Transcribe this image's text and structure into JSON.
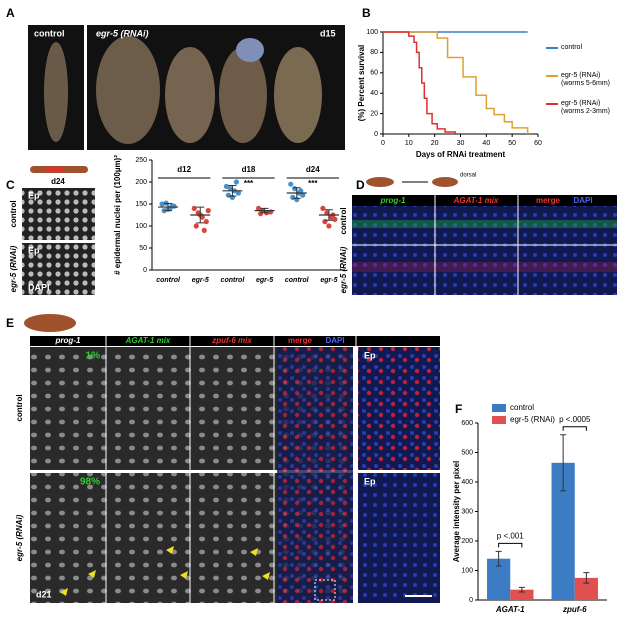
{
  "figure": {
    "panel_labels": [
      "A",
      "B",
      "C",
      "D",
      "E",
      "F"
    ],
    "panel_a": {
      "labels": [
        "control",
        "egr-5 (RNAi)",
        "d15"
      ]
    },
    "panel_c": {
      "header": "d24",
      "row_labels": [
        "control",
        "egr-5 (RNAi)"
      ],
      "tags": [
        "Ep",
        "Ep",
        "DAPI"
      ]
    },
    "panel_d": {
      "schematic": "dorsal",
      "columns": [
        "prog-1",
        "AGAT-1 mix",
        "merge",
        "DAPI"
      ],
      "rows": [
        "control",
        "egr-5 (RNAi)"
      ]
    },
    "panel_e": {
      "columns": [
        "prog-1",
        "AGAT-1 mix",
        "zpuf-6 mix",
        "merge",
        "DAPI"
      ],
      "rows": [
        "control",
        "egr-5 (RNAi)"
      ],
      "percent": [
        "1%",
        "98%"
      ],
      "tags": [
        "Ep",
        "Ep"
      ],
      "day": "d21"
    }
  },
  "chart_data": [
    {
      "type": "step",
      "ylabel": "(%) Percent survival",
      "xlabel": "Days of RNAi treatment",
      "xlim": [
        0,
        60
      ],
      "ylim": [
        0,
        100
      ],
      "xticks": [
        0,
        10,
        20,
        30,
        40,
        50,
        60
      ],
      "yticks": [
        0,
        20,
        40,
        60,
        80,
        100
      ],
      "series": [
        {
          "name": "control",
          "color": "#3b7cc4",
          "x": [
            0,
            56
          ],
          "values": [
            100,
            100
          ]
        },
        {
          "name": "egr-5 (RNAi) (worms 5-6mm)",
          "color": "#e0a030",
          "x": [
            0,
            21,
            25,
            31,
            36,
            40,
            43,
            47,
            50,
            56
          ],
          "values": [
            100,
            94,
            75,
            56,
            38,
            25,
            19,
            12,
            6,
            0
          ]
        },
        {
          "name": "egr-5 (RNAi) (worms 2-3mm)",
          "color": "#e03030",
          "x": [
            0,
            10,
            12,
            13,
            14,
            15,
            16,
            17,
            19,
            21,
            24,
            28
          ],
          "values": [
            100,
            96,
            90,
            80,
            65,
            50,
            35,
            20,
            10,
            5,
            2,
            0
          ]
        }
      ]
    },
    {
      "type": "dot",
      "ylabel": "# epidermal nuclei per (100µm)²",
      "ylim": [
        0,
        250
      ],
      "yticks": [
        0,
        50,
        100,
        150,
        200,
        250
      ],
      "groups": [
        "d12",
        "d18",
        "d24"
      ],
      "significance": [
        null,
        "***",
        "***"
      ],
      "categories": [
        "control",
        "egr-5",
        "control",
        "egr-5",
        "control",
        "egr-5"
      ],
      "colors": [
        "#4a90c8",
        "#d9443b"
      ],
      "points": [
        [
          150,
          152,
          140,
          145,
          135,
          138,
          146
        ],
        [
          140,
          130,
          120,
          110,
          100,
          125,
          90,
          135
        ],
        [
          190,
          185,
          180,
          175,
          170,
          165,
          200
        ],
        [
          140,
          135,
          130,
          132,
          128
        ],
        [
          195,
          185,
          175,
          170,
          165,
          160,
          180
        ],
        [
          140,
          130,
          120,
          115,
          110,
          100,
          125
        ]
      ],
      "means": [
        143,
        125,
        180,
        135,
        175,
        125
      ],
      "errors": [
        8,
        18,
        12,
        5,
        12,
        12
      ]
    },
    {
      "type": "bar",
      "ylabel": "Average intensity per pixel",
      "categories": [
        "AGAT-1",
        "zpuf-6"
      ],
      "ylim": [
        0,
        600
      ],
      "yticks": [
        0,
        100,
        200,
        300,
        400,
        500,
        600
      ],
      "series": [
        {
          "name": "control",
          "color": "#3b7cc4",
          "values": [
            140,
            465
          ],
          "errors": [
            25,
            95
          ]
        },
        {
          "name": "egr-5 (RNAi)",
          "color": "#e05050",
          "values": [
            35,
            75
          ],
          "errors": [
            8,
            18
          ]
        }
      ],
      "annotations": [
        "p <.001",
        "p <.0005"
      ]
    }
  ]
}
